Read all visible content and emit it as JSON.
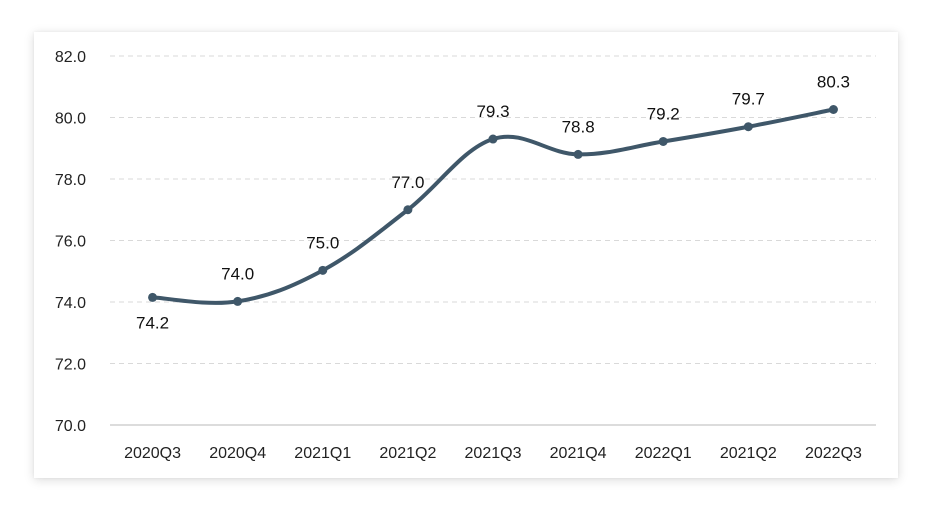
{
  "chart_data": {
    "type": "line",
    "title": "",
    "xlabel": "",
    "ylabel": "",
    "categories": [
      "2020Q3",
      "2020Q4",
      "2021Q1",
      "2021Q2",
      "2021Q3",
      "2021Q4",
      "2022Q1",
      "2021Q2",
      "2022Q3"
    ],
    "series": [
      {
        "values": [
          74.15,
          74.02,
          75.03,
          77.0,
          79.3,
          78.8,
          79.22,
          79.7,
          80.26
        ],
        "labels": [
          "74.2",
          "74.0",
          "75.0",
          "77.0",
          "79.3",
          "78.8",
          "79.2",
          "79.7",
          "80.3"
        ],
        "color": "#3f5769"
      }
    ],
    "ylim": [
      70,
      82
    ],
    "yticks": [
      "70.0",
      "72.0",
      "74.0",
      "76.0",
      "78.0",
      "80.0",
      "82.0"
    ],
    "grid": true,
    "smooth": true,
    "legend": "none"
  }
}
